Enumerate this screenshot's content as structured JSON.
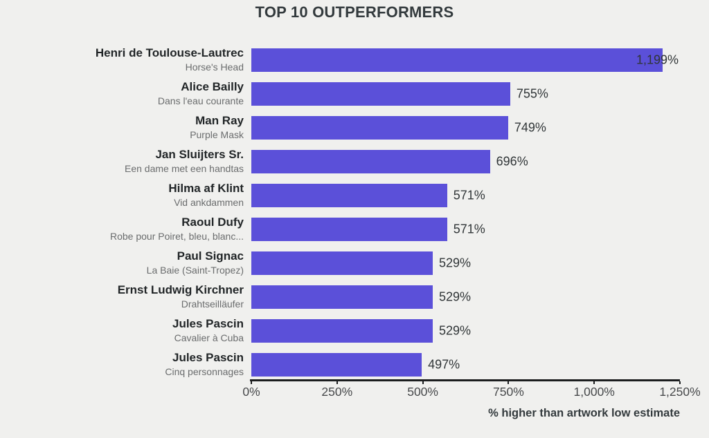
{
  "chart_data": {
    "type": "bar",
    "orientation": "horizontal",
    "title": "TOP 10 OUTPERFORMERS",
    "xlabel": "% higher than artwork low estimate",
    "xlim": [
      0,
      1250
    ],
    "grid": false,
    "legend": "none",
    "bar_color": "#5b50d9",
    "background_color": "#f0f0ee",
    "x_ticks": [
      {
        "value": 0,
        "label": "0%"
      },
      {
        "value": 250,
        "label": "250%"
      },
      {
        "value": 500,
        "label": "500%"
      },
      {
        "value": 750,
        "label": "750%"
      },
      {
        "value": 1000,
        "label": "1,000%"
      },
      {
        "value": 1250,
        "label": "1,250%"
      }
    ],
    "rows": [
      {
        "artist": "Henri de Toulouse-Lautrec",
        "artwork": "Horse's Head",
        "value": 1199,
        "value_label": "1,199%"
      },
      {
        "artist": "Alice Bailly",
        "artwork": "Dans l'eau courante",
        "value": 755,
        "value_label": "755%"
      },
      {
        "artist": "Man Ray",
        "artwork": "Purple Mask",
        "value": 749,
        "value_label": "749%"
      },
      {
        "artist": "Jan Sluijters Sr.",
        "artwork": "Een dame met een handtas",
        "value": 696,
        "value_label": "696%"
      },
      {
        "artist": "Hilma af Klint",
        "artwork": "Vid ankdammen",
        "value": 571,
        "value_label": "571%"
      },
      {
        "artist": "Raoul Dufy",
        "artwork": "Robe pour Poiret, bleu, blanc...",
        "value": 571,
        "value_label": "571%"
      },
      {
        "artist": "Paul Signac",
        "artwork": "La Baie (Saint-Tropez)",
        "value": 529,
        "value_label": "529%"
      },
      {
        "artist": "Ernst Ludwig Kirchner",
        "artwork": "Drahtseilläufer",
        "value": 529,
        "value_label": "529%"
      },
      {
        "artist": "Jules Pascin",
        "artwork": "Cavalier à Cuba",
        "value": 529,
        "value_label": "529%"
      },
      {
        "artist": "Jules Pascin",
        "artwork": "Cinq personnages",
        "value": 497,
        "value_label": "497%"
      }
    ]
  }
}
